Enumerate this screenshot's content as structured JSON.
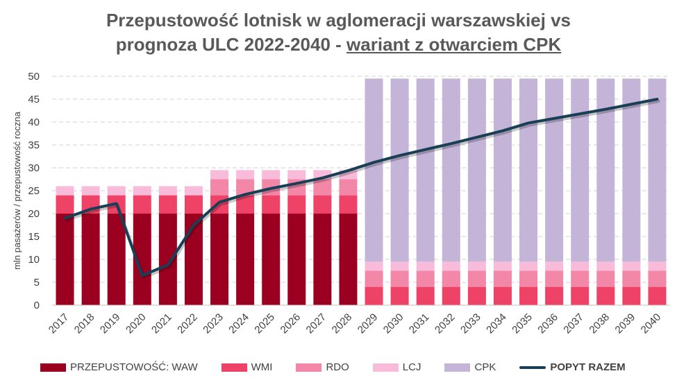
{
  "title": {
    "line1": "Przepustowość lotnisk w aglomeracji warszawskiej vs",
    "line2_prefix": "prognoza ULC 2022-2040 - ",
    "line2_emphasis": "wariant z otwarciem CPK"
  },
  "chart_data": {
    "type": "bar",
    "stacked": true,
    "title": "Przepustowość lotnisk w aglomeracji warszawskiej vs prognoza ULC 2022-2040 - wariant z otwarciem CPK",
    "xlabel": "",
    "ylabel": "mln pasażerów / przepustowość roczna",
    "ylim": [
      0,
      50
    ],
    "yticks": [
      0,
      5,
      10,
      15,
      20,
      25,
      30,
      35,
      40,
      45,
      50
    ],
    "grid": true,
    "legend_position": "bottom",
    "categories": [
      "2017",
      "2018",
      "2019",
      "2020",
      "2021",
      "2022",
      "2023",
      "2024",
      "2025",
      "2026",
      "2027",
      "2028",
      "2029",
      "2030",
      "2031",
      "2032",
      "2033",
      "2034",
      "2035",
      "2036",
      "2037",
      "2038",
      "2039",
      "2040"
    ],
    "series": [
      {
        "name": "PRZEPUSTOWOŚĆ: WAW",
        "color": "#9B0020",
        "values": [
          20,
          20,
          20,
          20,
          20,
          20,
          20,
          20,
          20,
          20,
          20,
          20,
          0,
          0,
          0,
          0,
          0,
          0,
          0,
          0,
          0,
          0,
          0,
          0
        ]
      },
      {
        "name": "WMI",
        "color": "#EE4367",
        "values": [
          4,
          4,
          4,
          4,
          4,
          4,
          4,
          4,
          4,
          4,
          4,
          4,
          4,
          4,
          4,
          4,
          4,
          4,
          4,
          4,
          4,
          4,
          4,
          4
        ]
      },
      {
        "name": "RDO",
        "color": "#F387A8",
        "values": [
          0,
          0,
          0,
          0,
          0,
          0,
          3.5,
          3.5,
          3.5,
          3.5,
          3.5,
          3.5,
          3.5,
          3.5,
          3.5,
          3.5,
          3.5,
          3.5,
          3.5,
          3.5,
          3.5,
          3.5,
          3.5,
          3.5
        ]
      },
      {
        "name": "LCJ",
        "color": "#F9BBDA",
        "values": [
          2,
          2,
          2,
          2,
          2,
          2,
          2,
          2,
          2,
          2,
          2,
          2,
          2,
          2,
          2,
          2,
          2,
          2,
          2,
          2,
          2,
          2,
          2,
          2
        ]
      },
      {
        "name": "CPK",
        "color": "#C3B4D8",
        "values": [
          0,
          0,
          0,
          0,
          0,
          0,
          0,
          0,
          0,
          0,
          0,
          0,
          40,
          40,
          40,
          40,
          40,
          40,
          40,
          40,
          40,
          40,
          40,
          40
        ]
      }
    ],
    "line_series": {
      "name": "POPYT RAZEM",
      "color": "#183F55",
      "values": [
        19,
        21,
        22.2,
        6.5,
        8.8,
        17.5,
        22.5,
        24.2,
        25.5,
        26.6,
        27.8,
        29.4,
        31.2,
        32.7,
        34,
        35.3,
        36.7,
        38.1,
        39.8,
        40.8,
        41.8,
        42.8,
        43.9,
        45
      ]
    }
  }
}
